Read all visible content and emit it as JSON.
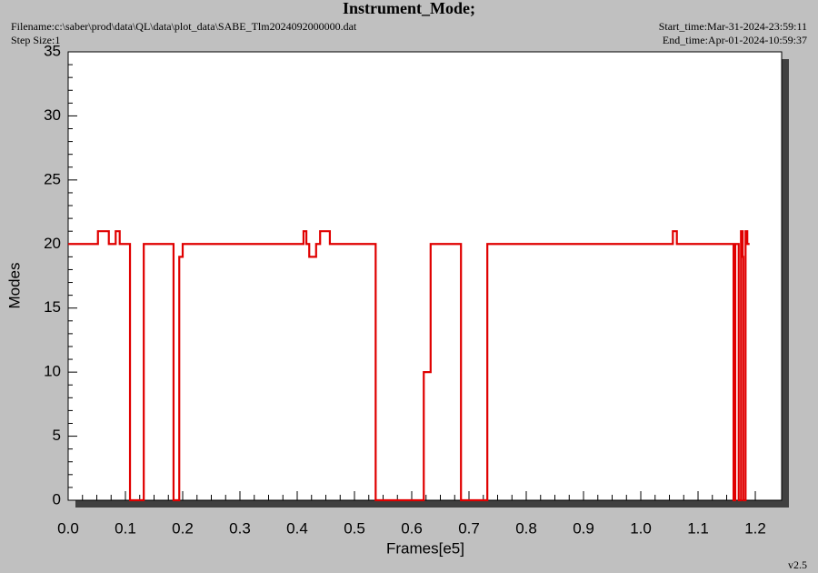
{
  "chart_data": {
    "type": "line",
    "step": "post",
    "title": "Instrument_Mode;",
    "filename": "Filename:c:\\saber\\prod\\data\\QL\\data\\plot_data\\SABE_Tlm2024092000000.dat",
    "step_size": "Step Size:1",
    "start_time": "Start_time:Mar-31-2024-23:59:11",
    "end_time": "End_time:Apr-01-2024-10:59:37",
    "version": "v2.5",
    "x_label": "Frames[e5]",
    "y_label": "Modes",
    "xlim": [
      0,
      1.246
    ],
    "ylim": [
      0,
      35
    ],
    "xticks": [
      {
        "value": 0,
        "label": "0.0"
      },
      0.1,
      0.2,
      0.3,
      0.4,
      0.5,
      0.6,
      0.7,
      0.8,
      0.9,
      {
        "value": 1,
        "label": "1.0"
      },
      1.1,
      1.2
    ],
    "yticks": [
      0,
      5,
      10,
      15,
      20,
      25,
      30,
      35
    ],
    "series": [
      {
        "color": "#e00000",
        "x": [
          0,
          0.052,
          0.071,
          0.083,
          0.09,
          0.108,
          0.132,
          0.184,
          0.194,
          0.2,
          0.411,
          0.416,
          0.421,
          0.433,
          0.44,
          0.457,
          0.537,
          0.621,
          0.633,
          0.686,
          0.732,
          1.056,
          1.063,
          1.162,
          1.165,
          1.171,
          1.175,
          1.178,
          1.179,
          1.183,
          1.186,
          1.19
        ],
        "values": [
          20,
          21,
          20,
          21,
          20,
          0,
          20,
          0,
          19,
          20,
          21,
          20,
          19,
          20,
          21,
          20,
          0,
          10,
          20,
          0,
          20,
          21,
          20,
          0,
          20,
          0,
          21,
          19,
          0,
          21,
          20,
          20
        ]
      }
    ]
  }
}
